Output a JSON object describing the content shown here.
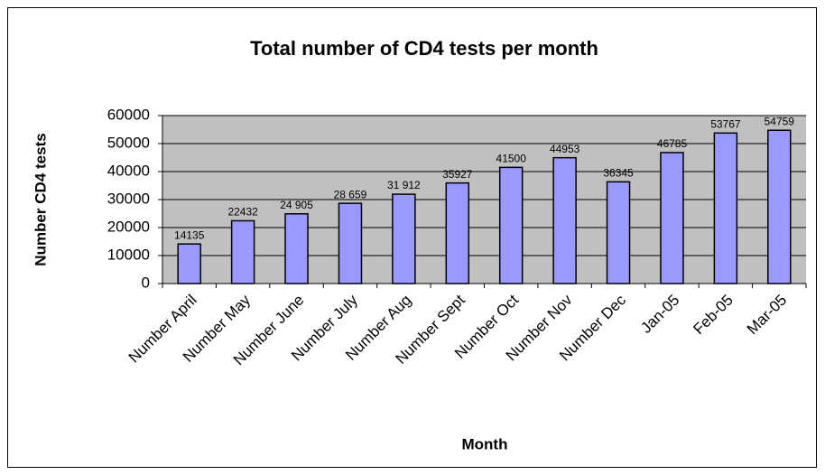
{
  "chart_data": {
    "type": "bar",
    "title": "Total number of CD4 tests per month",
    "x_label": "Month",
    "y_label": "Number CD4 tests",
    "categories": [
      "Number April",
      "Number May",
      "Number June",
      "Number July",
      "Number Aug",
      "Number Sept",
      "Number Oct",
      "Number Nov",
      "Number Dec",
      "Jan-05",
      "Feb-05",
      "Mar-05"
    ],
    "values": [
      14135,
      22432,
      24905,
      28659,
      31912,
      35927,
      41500,
      44953,
      36345,
      46785,
      53767,
      54759
    ],
    "value_labels": [
      "14135",
      "22432",
      "24 905",
      "28 659",
      "31 912",
      "35927",
      "41500",
      "44953",
      "36345",
      "46785",
      "53767",
      "54759"
    ],
    "color": "#9999ff",
    "ylim": [
      0,
      60000
    ],
    "yticks": [
      0,
      10000,
      20000,
      30000,
      40000,
      50000,
      60000
    ],
    "grid": true
  }
}
